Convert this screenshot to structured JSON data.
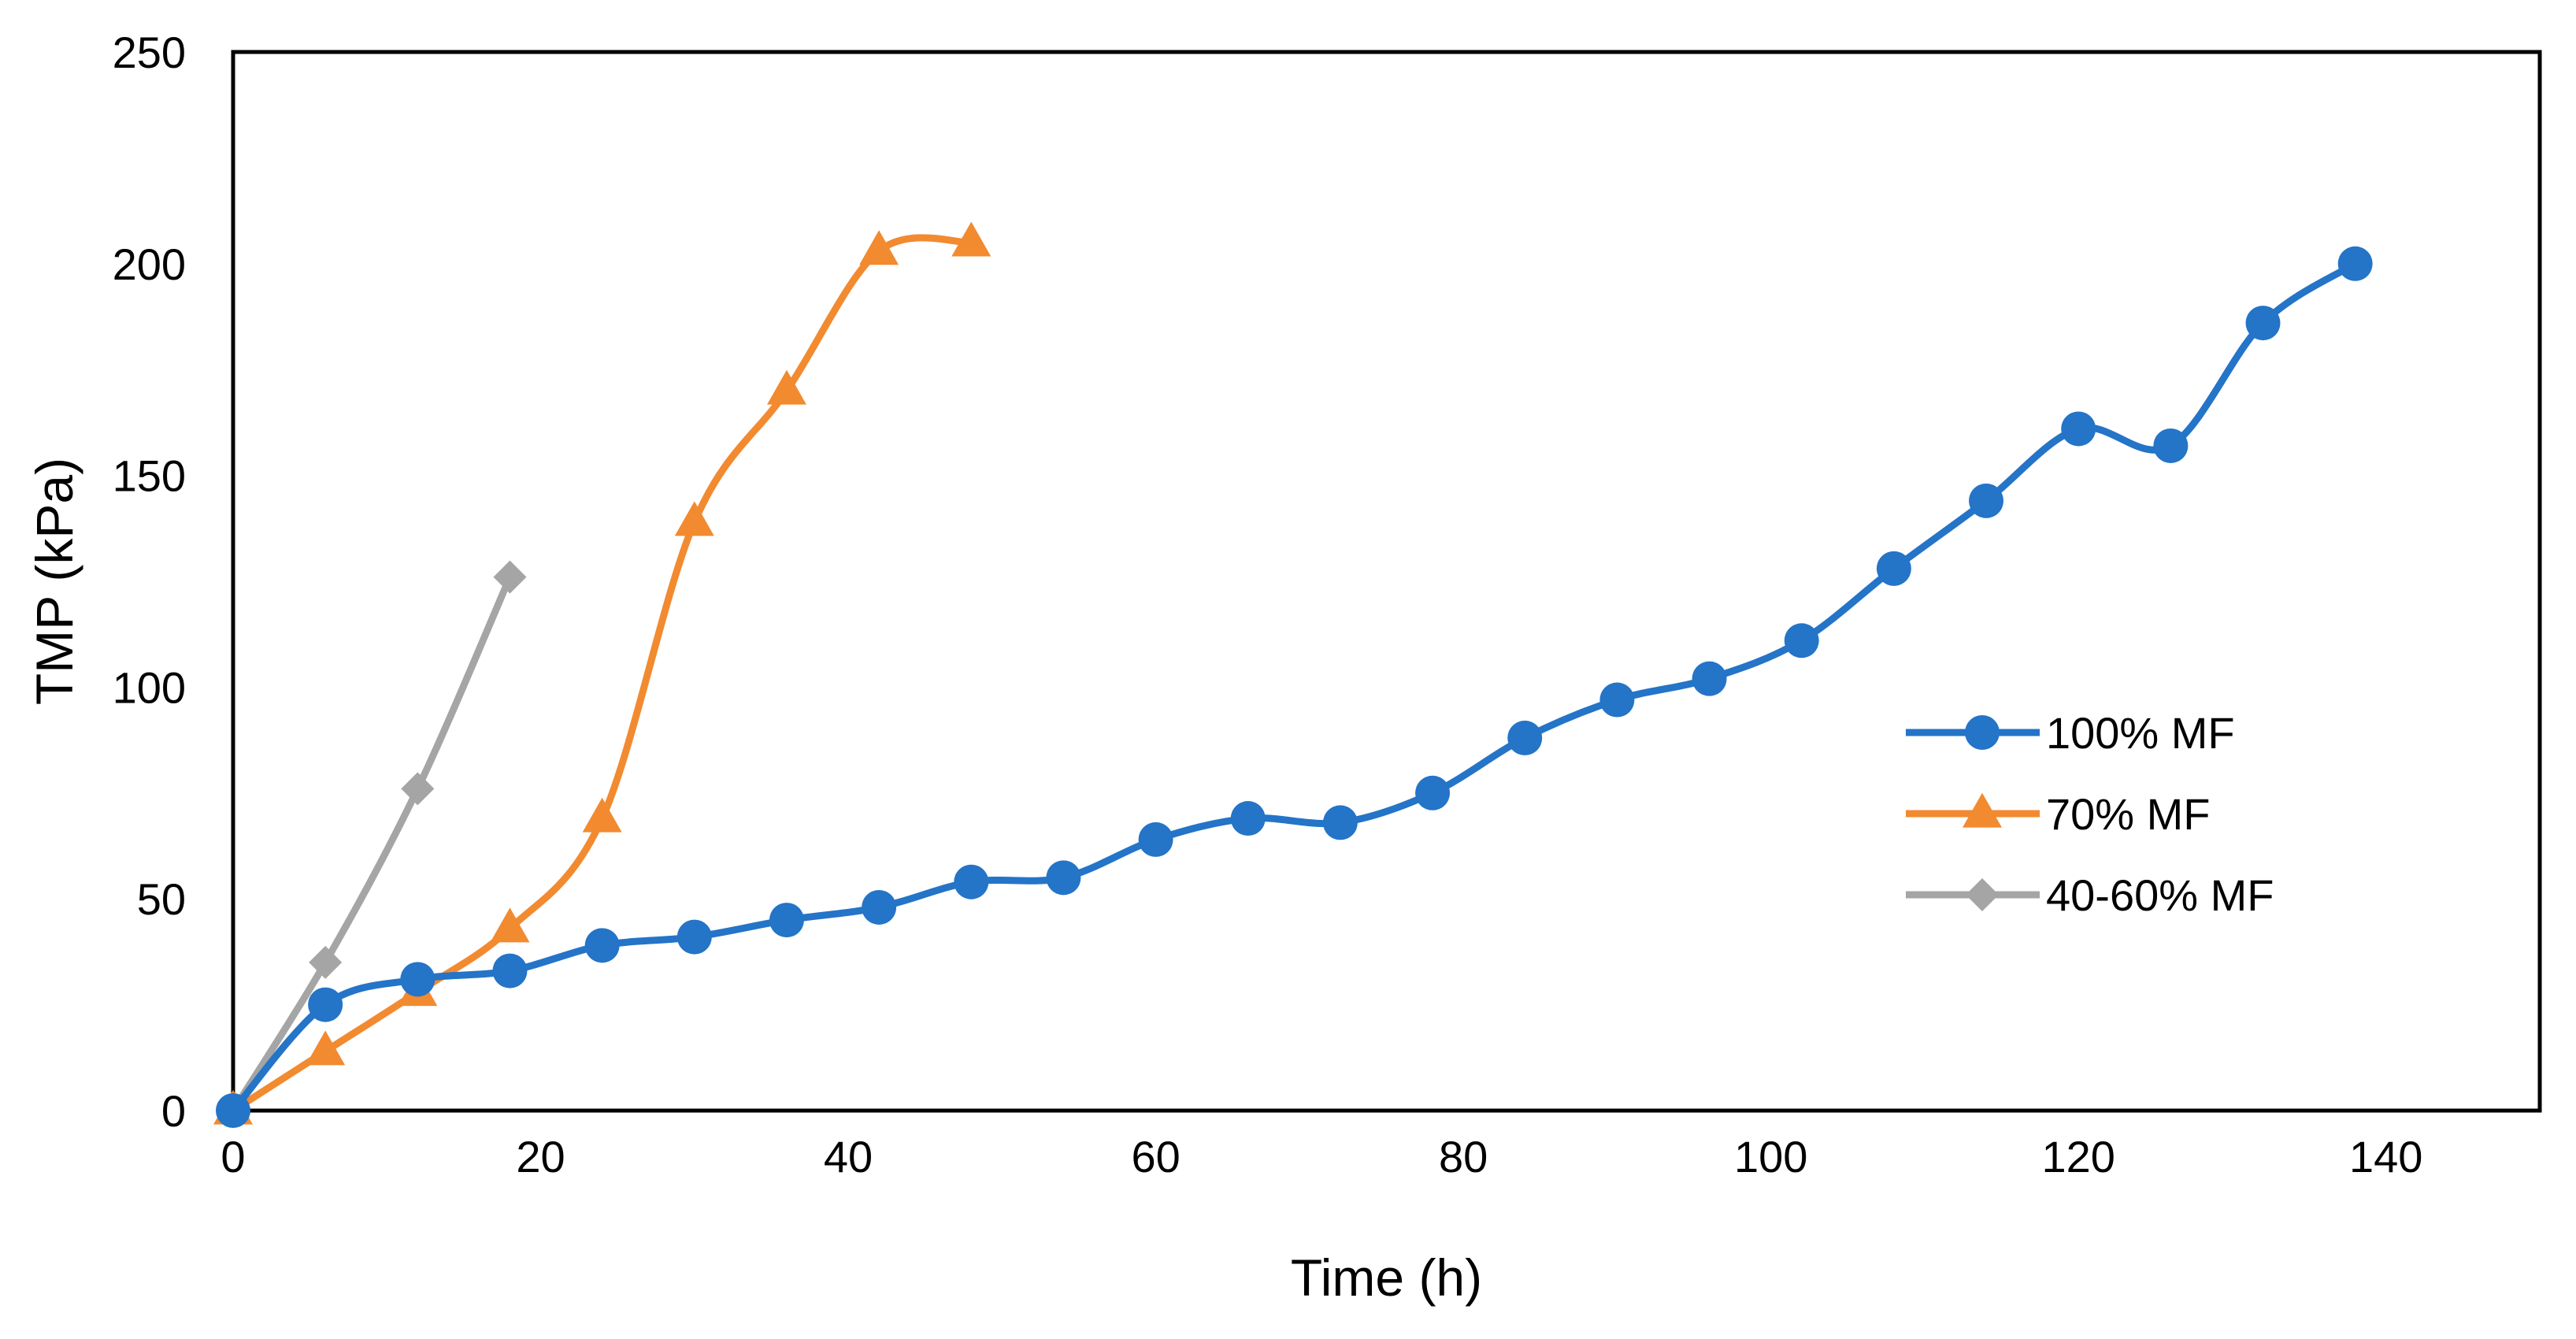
{
  "chart_data": {
    "type": "line",
    "title": "",
    "xlabel": "Time (h)",
    "ylabel": "TMP (kPa)",
    "xlim": [
      0,
      150
    ],
    "ylim": [
      0,
      250
    ],
    "xticks": [
      0,
      20,
      40,
      60,
      80,
      100,
      120,
      140
    ],
    "yticks": [
      0,
      50,
      100,
      150,
      200,
      250
    ],
    "grid": false,
    "legend_position": "right",
    "series": [
      {
        "name": "100% MF",
        "color": "#2474C8",
        "marker": "circle",
        "x": [
          0,
          6,
          12,
          18,
          24,
          30,
          36,
          42,
          48,
          54,
          60,
          66,
          72,
          78,
          84,
          90,
          96,
          102,
          108,
          114,
          120,
          126,
          132,
          138
        ],
        "y": [
          0,
          25,
          31,
          33,
          39,
          41,
          45,
          48,
          54,
          55,
          64,
          69,
          68,
          75,
          88,
          97,
          102,
          111,
          128,
          144,
          161,
          157,
          186,
          200
        ]
      },
      {
        "name": "70% MF",
        "color": "#F28A30",
        "marker": "triangle",
        "x": [
          0,
          6,
          12,
          18,
          24,
          30,
          36,
          42,
          48
        ],
        "y": [
          0,
          14,
          28,
          43,
          69,
          139,
          170,
          203,
          205
        ]
      },
      {
        "name": "40-60% MF",
        "color": "#A5A5A5",
        "marker": "diamond",
        "x": [
          0,
          6,
          12,
          18
        ],
        "y": [
          0,
          35,
          76,
          126
        ]
      }
    ]
  }
}
